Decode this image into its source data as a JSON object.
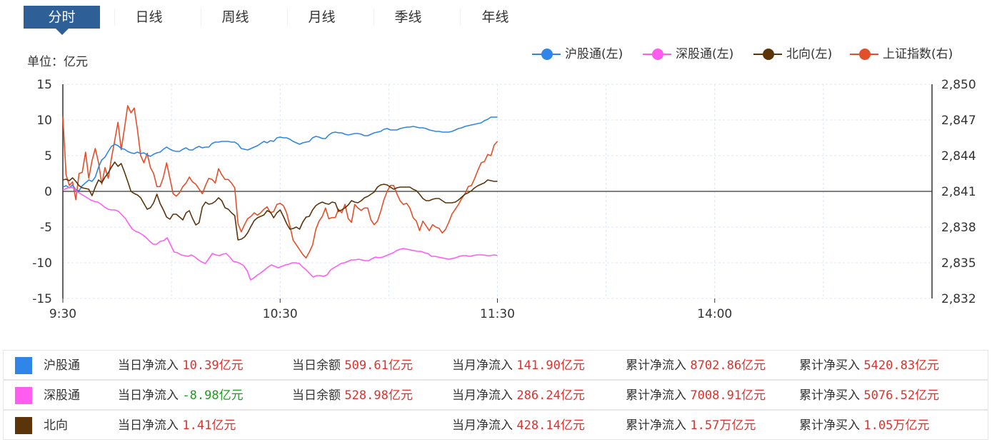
{
  "tabs": [
    "分时",
    "日线",
    "周线",
    "月线",
    "季线",
    "年线"
  ],
  "active_tab": 0,
  "unit_label": "单位：亿元",
  "colors": {
    "hgt": "#2f86e8",
    "sgt": "#ff5cf0",
    "bx": "#5c3409",
    "sz": "#e2502b",
    "tab_active": "#2e5f97",
    "red": "#e0302b",
    "green": "#1e9e1e"
  },
  "legend": [
    {
      "label": "沪股通(左)",
      "color": "#2f86e8"
    },
    {
      "label": "深股通(左)",
      "color": "#ff5cf0"
    },
    {
      "label": "北向(左)",
      "color": "#5c3409"
    },
    {
      "label": "上证指数(右)",
      "color": "#e2502b"
    }
  ],
  "chart_data": {
    "type": "line",
    "x_ticks": [
      "9:30",
      "10:30",
      "11:30",
      "14:00"
    ],
    "y_left": {
      "min": -15,
      "max": 15,
      "ticks": [
        "15",
        "10",
        "5",
        "0",
        "-5",
        "-10",
        "-15"
      ]
    },
    "y_right": {
      "min": 2832,
      "max": 2850,
      "ticks": [
        "2,850",
        "2,847",
        "2,844",
        "2,841",
        "2,838",
        "2,835",
        "2,832"
      ]
    },
    "grid": true,
    "legend_position": "top-right",
    "minutes_total": 240,
    "series": [
      {
        "name": "沪股通(左)",
        "axis": "left",
        "color": "#2f86e8",
        "values": [
          0.6,
          0.8,
          0.5,
          0.9,
          0.2,
          0.1,
          0.8,
          1.2,
          1.6,
          1.4,
          2.0,
          3.4,
          4.4,
          4.8,
          5.6,
          6.3,
          6.6,
          6.4,
          6.0,
          5.9,
          5.6,
          5.4,
          5.3,
          5.5,
          5.3,
          5.4,
          5.1,
          4.9,
          5.2,
          5.4,
          5.5,
          5.9,
          6.2,
          5.9,
          5.7,
          5.6,
          5.6,
          5.9,
          6.1,
          5.8,
          5.8,
          6.1,
          6.3,
          6.1,
          6.2,
          6.2,
          6.7,
          6.9,
          6.9,
          7.0,
          7.0,
          7.0,
          6.9,
          6.9,
          6.6,
          6.0,
          5.9,
          5.8,
          6.0,
          6.2,
          6.4,
          6.7,
          7.0,
          6.8,
          7.1,
          7.0,
          7.5,
          7.6,
          7.5,
          7.5,
          7.3,
          7.0,
          6.8,
          6.6,
          6.8,
          6.9,
          7.0,
          7.5,
          7.7,
          7.6,
          7.4,
          7.4,
          7.9,
          8.2,
          8.3,
          8.2,
          8.2,
          8.0,
          7.9,
          8.0,
          8.1,
          8.1,
          8.0,
          7.8,
          7.8,
          8.0,
          8.2,
          8.3,
          8.4,
          8.7,
          8.8,
          8.6,
          8.6,
          8.6,
          8.8,
          8.9,
          9.0,
          9.0,
          9.1,
          9.0,
          8.9,
          8.9,
          8.8,
          8.6,
          8.5,
          8.4,
          8.4,
          8.3,
          8.3,
          8.3,
          8.4,
          8.6,
          8.8,
          8.9,
          9.1,
          9.2,
          9.3,
          9.4,
          9.5,
          9.6,
          9.9,
          10.1,
          10.4,
          10.4,
          10.39
        ]
      },
      {
        "name": "深股通(左)",
        "axis": "left",
        "color": "#ff5cf0",
        "values": [
          0.2,
          0.4,
          0.6,
          0.5,
          0.0,
          -0.3,
          -0.6,
          -0.9,
          -1.2,
          -1.4,
          -1.5,
          -1.8,
          -2.2,
          -2.5,
          -2.6,
          -2.6,
          -2.8,
          -3.3,
          -3.8,
          -4.6,
          -5.3,
          -5.6,
          -5.8,
          -6.1,
          -6.5,
          -7.0,
          -7.4,
          -7.4,
          -7.0,
          -6.9,
          -6.5,
          -7.5,
          -8.5,
          -8.6,
          -8.9,
          -9.0,
          -9.1,
          -8.9,
          -9.2,
          -9.6,
          -9.9,
          -10.1,
          -9.4,
          -8.7,
          -8.9,
          -9.0,
          -8.8,
          -8.7,
          -9.2,
          -9.8,
          -9.9,
          -10.1,
          -10.4,
          -11.1,
          -12.4,
          -12.1,
          -11.7,
          -11.4,
          -11.0,
          -10.6,
          -10.3,
          -10.5,
          -10.7,
          -10.5,
          -10.3,
          -10.2,
          -10.0,
          -10.0,
          -10.1,
          -10.6,
          -11.0,
          -11.5,
          -12.0,
          -11.8,
          -11.8,
          -11.9,
          -11.7,
          -11.0,
          -10.7,
          -10.4,
          -10.1,
          -10.0,
          -9.8,
          -9.6,
          -9.6,
          -9.5,
          -9.6,
          -9.7,
          -9.7,
          -9.4,
          -9.2,
          -9.3,
          -9.2,
          -9.0,
          -8.8,
          -8.6,
          -8.3,
          -8.1,
          -8.0,
          -8.1,
          -8.2,
          -8.3,
          -8.4,
          -8.4,
          -8.6,
          -8.7,
          -9.1,
          -9.1,
          -9.2,
          -9.3,
          -9.4,
          -9.5,
          -9.4,
          -9.3,
          -9.1,
          -9.0,
          -9.0,
          -9.1,
          -9.0,
          -8.9,
          -8.9,
          -8.9,
          -9.0,
          -9.0,
          -8.9,
          -8.98
        ]
      },
      {
        "name": "北向(左)",
        "axis": "left",
        "color": "#5c3409",
        "values": [
          1.6,
          1.7,
          1.5,
          1.9,
          1.4,
          0.8,
          0.5,
          0.4,
          0.3,
          -0.6,
          0.6,
          1.6,
          1.2,
          2.0,
          2.6,
          3.4,
          4.1,
          3.5,
          3.9,
          2.7,
          1.4,
          0.0,
          -0.3,
          -0.5,
          -0.9,
          -1.7,
          -2.5,
          -2.3,
          -1.6,
          -0.4,
          -1.7,
          -2.6,
          -3.6,
          -3.9,
          -3.2,
          -3.2,
          -3.6,
          -4.0,
          -3.0,
          -2.7,
          -3.8,
          -4.7,
          -4.4,
          -2.2,
          -1.5,
          -1.8,
          -1.7,
          -1.4,
          -0.9,
          -1.3,
          -2.3,
          -2.5,
          -3.0,
          -3.4,
          -6.8,
          -6.7,
          -6.4,
          -5.8,
          -4.9,
          -4.1,
          -3.7,
          -3.5,
          -3.3,
          -2.7,
          -2.9,
          -3.7,
          -3.0,
          -2.6,
          -3.5,
          -4.5,
          -5.3,
          -5.2,
          -5.0,
          -5.3,
          -4.3,
          -3.6,
          -3.5,
          -2.6,
          -2.0,
          -1.7,
          -1.5,
          -1.7,
          -1.8,
          -1.5,
          -1.6,
          -2.8,
          -2.6,
          -2.3,
          -1.9,
          -1.3,
          -1.5,
          -1.6,
          -1.3,
          -0.9,
          -0.7,
          -0.4,
          -0.1,
          0.6,
          0.9,
          1.0,
          0.9,
          0.6,
          0.3,
          0.5,
          0.6,
          0.6,
          0.6,
          0.6,
          0.3,
          0.1,
          -0.4,
          -1.0,
          -1.3,
          -1.3,
          -1.1,
          -1.0,
          -1.0,
          -1.3,
          -1.6,
          -1.6,
          -1.6,
          -1.5,
          -1.2,
          -0.8,
          -0.4,
          -0.2,
          0.1,
          0.5,
          0.8,
          1.0,
          1.2,
          1.6,
          1.5,
          1.4,
          1.41
        ]
      },
      {
        "name": "上证指数(右)",
        "axis": "right",
        "color": "#e2502b",
        "values": [
          2847.3,
          2842.4,
          2841.5,
          2841.8,
          2840.3,
          2842.5,
          2842.6,
          2844.3,
          2842.1,
          2843.6,
          2844.6,
          2843.4,
          2841.6,
          2843.0,
          2842.1,
          2843.8,
          2845.3,
          2846.8,
          2844.5,
          2846.3,
          2848.2,
          2847.6,
          2848.0,
          2846.2,
          2844.0,
          2843.4,
          2844.2,
          2843.0,
          2842.5,
          2841.4,
          2841.4,
          2842.2,
          2843.4,
          2842.1,
          2840.8,
          2840.6,
          2840.9,
          2841.4,
          2841.7,
          2842.2,
          2841.8,
          2841.6,
          2841.2,
          2840.8,
          2841.5,
          2842.1,
          2842.0,
          2841.7,
          2842.9,
          2842.4,
          2842.0,
          2842.0,
          2841.7,
          2841.3,
          2838.3,
          2837.6,
          2838.2,
          2838.7,
          2838.9,
          2839.2,
          2839.0,
          2839.2,
          2839.5,
          2839.7,
          2839.2,
          2839.3,
          2839.9,
          2840.0,
          2839.8,
          2839.2,
          2838.1,
          2836.9,
          2836.5,
          2836.1,
          2835.7,
          2835.4,
          2835.9,
          2836.5,
          2837.8,
          2838.5,
          2838.9,
          2839.6,
          2838.7,
          2838.8,
          2838.8,
          2839.5,
          2839.2,
          2839.9,
          2838.7,
          2838.4,
          2839.9,
          2839.6,
          2839.4,
          2839.6,
          2839.6,
          2838.6,
          2838.2,
          2838.5,
          2839.3,
          2840.3,
          2841.0,
          2841.5,
          2841.5,
          2840.8,
          2840.2,
          2839.9,
          2840.0,
          2839.6,
          2838.8,
          2838.5,
          2837.7,
          2838.5,
          2838.1,
          2837.7,
          2838.2,
          2838.0,
          2837.9,
          2837.5,
          2837.8,
          2838.4,
          2839.1,
          2839.5,
          2839.9,
          2840.4,
          2840.8,
          2841.4,
          2841.5,
          2842.1,
          2842.8,
          2843.4,
          2843.5,
          2844.1,
          2844.0,
          2844.9,
          2845.2
        ]
      }
    ]
  },
  "summary": [
    {
      "name": "沪股通",
      "color": "#2f86e8",
      "cells": [
        {
          "label": "当日净流入",
          "value": "10.39亿元",
          "tone": "red"
        },
        {
          "label": "当日余额",
          "value": "509.61亿元",
          "tone": "red"
        },
        {
          "label": "当月净流入",
          "value": "141.90亿元",
          "tone": "red"
        },
        {
          "label": "累计净流入",
          "value": "8702.86亿元",
          "tone": "red"
        },
        {
          "label": "累计净买入",
          "value": "5420.83亿元",
          "tone": "red"
        }
      ]
    },
    {
      "name": "深股通",
      "color": "#ff5cf0",
      "cells": [
        {
          "label": "当日净流入",
          "value": "-8.98亿元",
          "tone": "green"
        },
        {
          "label": "当日余额",
          "value": "528.98亿元",
          "tone": "red"
        },
        {
          "label": "当月净流入",
          "value": "286.24亿元",
          "tone": "red"
        },
        {
          "label": "累计净流入",
          "value": "7008.91亿元",
          "tone": "red"
        },
        {
          "label": "累计净买入",
          "value": "5076.52亿元",
          "tone": "red"
        }
      ]
    },
    {
      "name": "北向",
      "color": "#5c3409",
      "cells": [
        {
          "label": "当日净流入",
          "value": "1.41亿元",
          "tone": "red"
        },
        {
          "label": "",
          "value": "",
          "tone": "red"
        },
        {
          "label": "当月净流入",
          "value": "428.14亿元",
          "tone": "red"
        },
        {
          "label": "累计净流入",
          "value": "1.57万亿元",
          "tone": "red"
        },
        {
          "label": "累计净买入",
          "value": "1.05万亿元",
          "tone": "red"
        }
      ]
    }
  ]
}
